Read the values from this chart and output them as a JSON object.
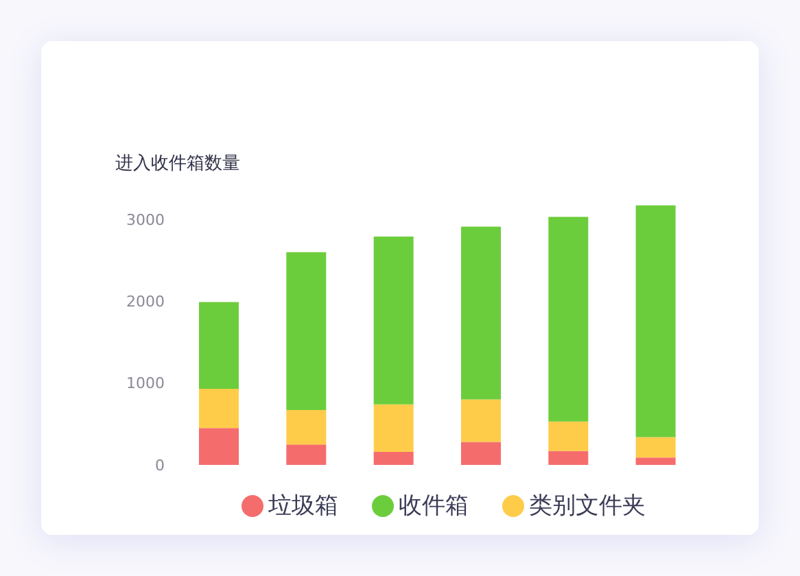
{
  "chart_data": {
    "type": "bar",
    "ylabel": "进入收件箱数量",
    "categories": [
      null,
      null,
      null,
      null,
      null,
      null
    ],
    "stacked": true,
    "ylim": [
      0,
      3200
    ],
    "yticks": [
      0,
      1000,
      2000,
      3000
    ],
    "grid": false,
    "legend": "bottom",
    "series": [
      {
        "name": "垃圾箱",
        "color": "#f56c6c",
        "values": [
          450,
          250,
          160,
          280,
          170,
          90
        ]
      },
      {
        "name": "类别文件夹",
        "color": "#ffcc4a",
        "values": [
          480,
          420,
          580,
          520,
          360,
          250
        ]
      },
      {
        "name": "收件箱",
        "color": "#6ccd3c",
        "values": [
          1060,
          1930,
          2050,
          2110,
          2500,
          2830
        ]
      }
    ]
  }
}
